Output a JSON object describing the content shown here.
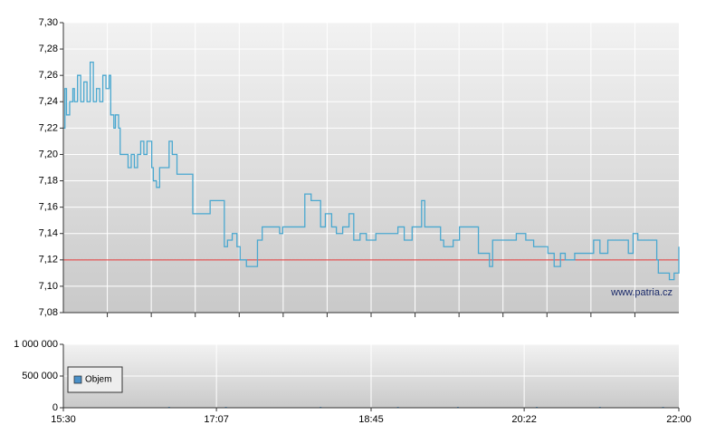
{
  "chart_data": [
    {
      "type": "line",
      "step": true,
      "color": "#4aa8d0",
      "xlim": [
        "15:30",
        "22:00"
      ],
      "ylim": [
        7.08,
        7.3
      ],
      "yticks": [
        {
          "value": 7.08,
          "label": "7,08"
        },
        {
          "value": 7.1,
          "label": "7,10"
        },
        {
          "value": 7.12,
          "label": "7,12"
        },
        {
          "value": 7.14,
          "label": "7,14"
        },
        {
          "value": 7.16,
          "label": "7,16"
        },
        {
          "value": 7.18,
          "label": "7,18"
        },
        {
          "value": 7.2,
          "label": "7,20"
        },
        {
          "value": 7.22,
          "label": "7,22"
        },
        {
          "value": 7.24,
          "label": "7,24"
        },
        {
          "value": 7.26,
          "label": "7,26"
        },
        {
          "value": 7.28,
          "label": "7,28"
        },
        {
          "value": 7.3,
          "label": "7,30"
        }
      ],
      "grid": true,
      "reference_line": {
        "value": 7.12,
        "color": "#e03030"
      },
      "annotation": "www.patria.cz",
      "x": [
        "15:30",
        "15:31",
        "15:32",
        "15:34",
        "15:36",
        "15:37",
        "15:39",
        "15:41",
        "15:43",
        "15:45",
        "15:47",
        "15:49",
        "15:51",
        "15:53",
        "15:55",
        "15:57",
        "15:59",
        "16:00",
        "16:02",
        "16:03",
        "16:05",
        "16:06",
        "16:09",
        "16:11",
        "16:13",
        "16:15",
        "16:17",
        "16:19",
        "16:21",
        "16:23",
        "16:26",
        "16:27",
        "16:29",
        "16:31",
        "16:33",
        "16:37",
        "16:39",
        "16:42",
        "16:49",
        "16:52",
        "17:02",
        "17:03",
        "17:10",
        "17:12",
        "17:14",
        "17:17",
        "17:20",
        "17:22",
        "17:26",
        "17:32",
        "17:33",
        "17:36",
        "17:45",
        "17:47",
        "17:49",
        "18:02",
        "18:03",
        "18:07",
        "18:10",
        "18:13",
        "18:16",
        "18:20",
        "18:23",
        "18:27",
        "18:31",
        "18:34",
        "18:38",
        "18:42",
        "18:48",
        "18:52",
        "19:02",
        "19:06",
        "19:11",
        "19:17",
        "19:19",
        "19:25",
        "19:29",
        "19:31",
        "19:37",
        "19:41",
        "19:51",
        "19:53",
        "19:57",
        "20:00",
        "20:02",
        "20:08",
        "20:14",
        "20:17",
        "20:23",
        "20:28",
        "20:37",
        "20:41",
        "20:45",
        "20:48",
        "20:54",
        "21:00",
        "21:06",
        "21:10",
        "21:15",
        "21:26",
        "21:28",
        "21:31",
        "21:34",
        "21:43",
        "21:46",
        "21:47",
        "21:51",
        "21:54",
        "21:57",
        "22:00"
      ],
      "values": [
        7.22,
        7.25,
        7.23,
        7.24,
        7.25,
        7.24,
        7.26,
        7.24,
        7.255,
        7.24,
        7.27,
        7.24,
        7.25,
        7.24,
        7.26,
        7.25,
        7.26,
        7.23,
        7.22,
        7.23,
        7.22,
        7.2,
        7.2,
        7.19,
        7.2,
        7.19,
        7.2,
        7.21,
        7.2,
        7.21,
        7.19,
        7.18,
        7.175,
        7.19,
        7.19,
        7.21,
        7.2,
        7.185,
        7.185,
        7.155,
        7.155,
        7.165,
        7.165,
        7.13,
        7.135,
        7.14,
        7.13,
        7.12,
        7.115,
        7.115,
        7.135,
        7.145,
        7.145,
        7.14,
        7.145,
        7.145,
        7.17,
        7.165,
        7.165,
        7.145,
        7.155,
        7.145,
        7.14,
        7.145,
        7.155,
        7.135,
        7.14,
        7.135,
        7.14,
        7.14,
        7.145,
        7.135,
        7.145,
        7.165,
        7.145,
        7.145,
        7.135,
        7.13,
        7.135,
        7.145,
        7.145,
        7.125,
        7.125,
        7.115,
        7.135,
        7.135,
        7.135,
        7.14,
        7.135,
        7.13,
        7.125,
        7.115,
        7.125,
        7.12,
        7.125,
        7.125,
        7.135,
        7.125,
        7.135,
        7.135,
        7.125,
        7.14,
        7.135,
        7.135,
        7.12,
        7.11,
        7.11,
        7.105,
        7.11,
        7.13
      ]
    },
    {
      "type": "bar",
      "color": "#4a90c8",
      "xlim": [
        "15:30",
        "22:00"
      ],
      "xticks": [
        "15:30",
        "17:07",
        "18:45",
        "20:22",
        "22:00"
      ],
      "ylim": [
        0,
        1000000
      ],
      "yticks": [
        0,
        {
          "value": 500000,
          "label": "500 000"
        },
        {
          "value": 1000000,
          "label": "1 000 000"
        }
      ],
      "grid": true,
      "series": [
        {
          "name": "Objem",
          "color": "#4a90c8",
          "x": [
            "16:37",
            "17:13",
            "18:13",
            "19:02",
            "19:40",
            "20:30",
            "21:10",
            "21:50"
          ],
          "values": [
            2000,
            3000,
            8000,
            3000,
            2000,
            4000,
            3000,
            5000
          ]
        }
      ]
    }
  ]
}
